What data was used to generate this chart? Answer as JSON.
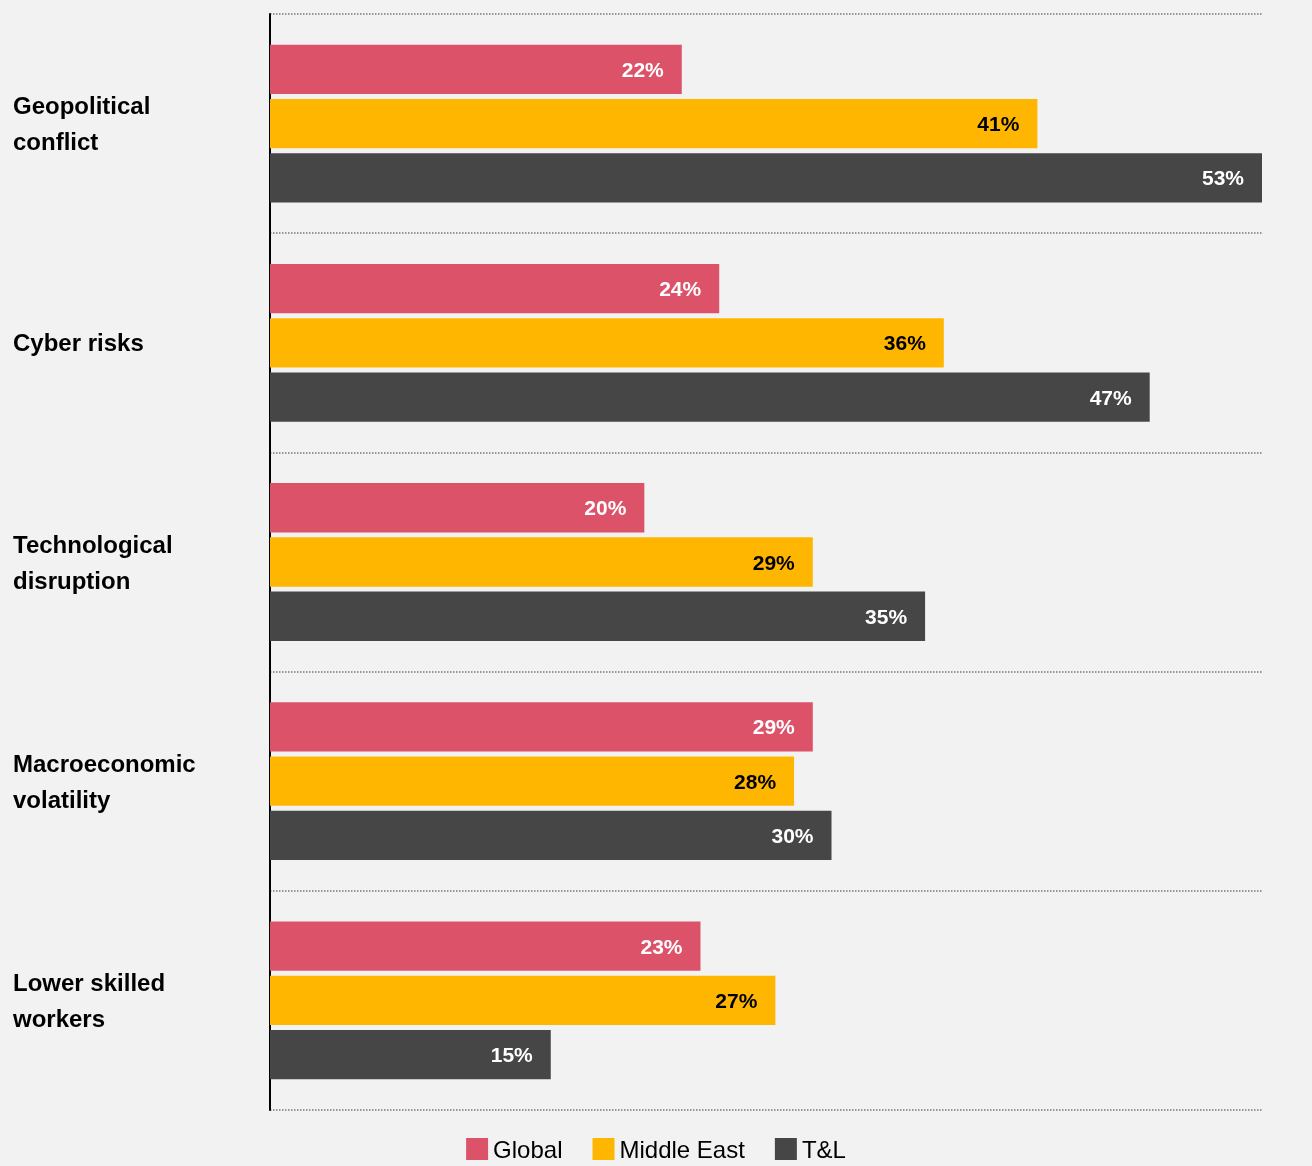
{
  "chart_data": {
    "type": "bar",
    "orientation": "horizontal",
    "grid": "y",
    "legend": "bottom",
    "categories": [
      "Geopolitical conflict",
      "Cyber risks",
      "Technological disruption",
      "Macroeconomic volatility",
      "Lower skilled workers"
    ],
    "series": [
      {
        "name": "Global",
        "color": "#dc5369",
        "values": [
          22,
          24,
          20,
          29,
          23
        ],
        "value_labels": [
          "22%",
          "24%",
          "20%",
          "29%",
          "23%"
        ]
      },
      {
        "name": "Middle East",
        "color": "#ffb600",
        "values": [
          41,
          36,
          29,
          28,
          27
        ],
        "value_labels": [
          "41%",
          "36%",
          "29%",
          "28%",
          "27%"
        ]
      },
      {
        "name": "T&L",
        "color": "#464646",
        "values": [
          53,
          47,
          35,
          30,
          15
        ],
        "value_labels": [
          "53%",
          "47%",
          "35%",
          "30%",
          "15%"
        ]
      }
    ]
  }
}
